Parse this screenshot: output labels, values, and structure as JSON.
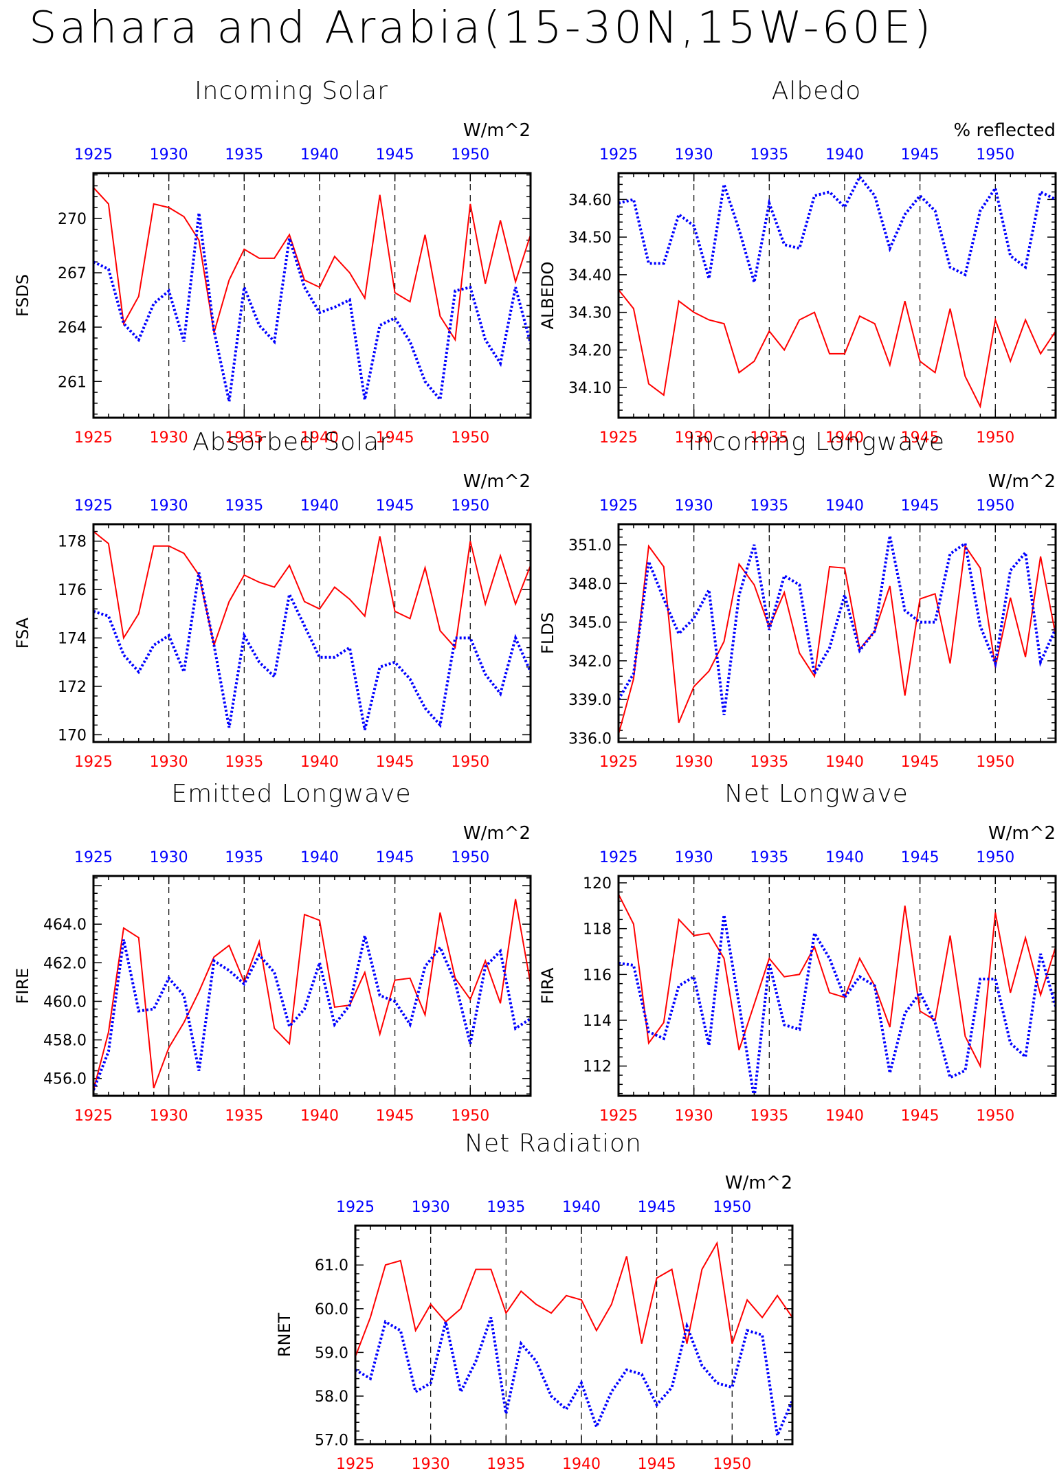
{
  "title": "Sahara and Arabia(15-30N,15W-60E)",
  "colors": {
    "series_a": "#ff0000",
    "series_b": "#0000ff",
    "axis": "#000000",
    "grid": "#000000"
  },
  "chart_data": [
    {
      "type": "line",
      "title": "Incoming Solar",
      "units": "W/m^2",
      "ylabel": "FSDS",
      "xlim": [
        1925,
        1954
      ],
      "ylim": [
        259.0,
        272.5
      ],
      "yticks": [
        "261",
        "264",
        "267",
        "270"
      ],
      "ytick_values": [
        261,
        264,
        267,
        270
      ],
      "xticks": [
        "1925",
        "1930",
        "1935",
        "1940",
        "1945",
        "1950"
      ],
      "x": [
        1925,
        1926,
        1927,
        1928,
        1929,
        1930,
        1931,
        1932,
        1933,
        1934,
        1935,
        1936,
        1937,
        1938,
        1939,
        1940,
        1941,
        1942,
        1943,
        1944,
        1945,
        1946,
        1947,
        1948,
        1949,
        1950,
        1951,
        1952,
        1953,
        1954
      ],
      "series": [
        {
          "style": "solid",
          "values": [
            271.7,
            270.8,
            264.2,
            265.7,
            270.8,
            270.6,
            270.1,
            268.8,
            263.7,
            266.6,
            268.3,
            267.8,
            267.8,
            269.1,
            266.6,
            266.2,
            267.9,
            267.0,
            265.6,
            271.3,
            265.9,
            265.4,
            269.1,
            264.6,
            263.3,
            270.8,
            266.4,
            269.9,
            266.5,
            269.1
          ]
        },
        {
          "style": "dotted",
          "values": [
            267.6,
            267.2,
            264.2,
            263.3,
            265.3,
            266.0,
            263.2,
            270.3,
            263.8,
            259.9,
            266.2,
            264.1,
            263.2,
            268.9,
            266.2,
            264.8,
            265.1,
            265.5,
            260.0,
            264.1,
            264.5,
            263.2,
            261.0,
            260.0,
            266.0,
            266.2,
            263.3,
            262.0,
            266.2,
            263.1
          ]
        }
      ]
    },
    {
      "type": "line",
      "title": "Albedo",
      "units": "% reflected",
      "ylabel": "ALBEDO",
      "xlim": [
        1925,
        1954
      ],
      "ylim": [
        34.02,
        34.67
      ],
      "yticks": [
        "34.10",
        "34.20",
        "34.30",
        "34.40",
        "34.50",
        "34.60"
      ],
      "ytick_values": [
        34.1,
        34.2,
        34.3,
        34.4,
        34.5,
        34.6
      ],
      "xticks": [
        "1925",
        "1930",
        "1935",
        "1940",
        "1945",
        "1950"
      ],
      "x": [
        1925,
        1926,
        1927,
        1928,
        1929,
        1930,
        1931,
        1932,
        1933,
        1934,
        1935,
        1936,
        1937,
        1938,
        1939,
        1940,
        1941,
        1942,
        1943,
        1944,
        1945,
        1946,
        1947,
        1948,
        1949,
        1950,
        1951,
        1952,
        1953,
        1954
      ],
      "series": [
        {
          "style": "solid",
          "values": [
            34.36,
            34.31,
            34.11,
            34.08,
            34.33,
            34.3,
            34.28,
            34.27,
            34.14,
            34.17,
            34.25,
            34.2,
            34.28,
            34.3,
            34.19,
            34.19,
            34.29,
            34.27,
            34.16,
            34.33,
            34.17,
            34.14,
            34.31,
            34.13,
            34.05,
            34.28,
            34.17,
            34.28,
            34.19,
            34.25
          ]
        },
        {
          "style": "dotted",
          "values": [
            34.59,
            34.6,
            34.43,
            34.43,
            34.56,
            34.53,
            34.39,
            34.64,
            34.52,
            34.38,
            34.59,
            34.48,
            34.47,
            34.61,
            34.62,
            34.58,
            34.66,
            34.61,
            34.47,
            34.56,
            34.61,
            34.57,
            34.42,
            34.4,
            34.57,
            34.63,
            34.45,
            34.42,
            34.62,
            34.6
          ]
        }
      ]
    },
    {
      "type": "line",
      "title": "Absorbed Solar",
      "units": "W/m^2",
      "ylabel": "FSA",
      "xlim": [
        1925,
        1954
      ],
      "ylim": [
        169.7,
        178.7
      ],
      "yticks": [
        "170",
        "172",
        "174",
        "176",
        "178"
      ],
      "ytick_values": [
        170,
        172,
        174,
        176,
        178
      ],
      "xticks": [
        "1925",
        "1930",
        "1935",
        "1940",
        "1945",
        "1950"
      ],
      "x": [
        1925,
        1926,
        1927,
        1928,
        1929,
        1930,
        1931,
        1932,
        1933,
        1934,
        1935,
        1936,
        1937,
        1938,
        1939,
        1940,
        1941,
        1942,
        1943,
        1944,
        1945,
        1946,
        1947,
        1948,
        1949,
        1950,
        1951,
        1952,
        1953,
        1954
      ],
      "series": [
        {
          "style": "solid",
          "values": [
            178.4,
            177.9,
            174.0,
            175.0,
            177.8,
            177.8,
            177.5,
            176.6,
            173.7,
            175.5,
            176.6,
            176.3,
            176.1,
            177.0,
            175.5,
            175.2,
            176.1,
            175.6,
            174.9,
            178.2,
            175.1,
            174.8,
            176.9,
            174.3,
            173.6,
            178.0,
            175.4,
            177.4,
            175.4,
            177.0
          ]
        },
        {
          "style": "dotted",
          "values": [
            175.1,
            174.9,
            173.3,
            172.6,
            173.7,
            174.1,
            172.6,
            176.7,
            173.7,
            170.3,
            174.1,
            173.0,
            172.4,
            175.8,
            174.5,
            173.2,
            173.2,
            173.6,
            170.2,
            172.8,
            173.0,
            172.3,
            171.1,
            170.4,
            174.0,
            174.0,
            172.5,
            171.7,
            174.0,
            172.6
          ]
        }
      ]
    },
    {
      "type": "line",
      "title": "Incoming Longwave",
      "units": "W/m^2",
      "ylabel": "FLDS",
      "xlim": [
        1925,
        1954
      ],
      "ylim": [
        335.7,
        352.6
      ],
      "yticks": [
        "336.0",
        "339.0",
        "342.0",
        "345.0",
        "348.0",
        "351.0"
      ],
      "ytick_values": [
        336,
        339,
        342,
        345,
        348,
        351
      ],
      "xticks": [
        "1925",
        "1930",
        "1935",
        "1940",
        "1945",
        "1950"
      ],
      "x": [
        1925,
        1926,
        1927,
        1928,
        1929,
        1930,
        1931,
        1932,
        1933,
        1934,
        1935,
        1936,
        1937,
        1938,
        1939,
        1940,
        1941,
        1942,
        1943,
        1944,
        1945,
        1946,
        1947,
        1948,
        1949,
        1950,
        1951,
        1952,
        1953,
        1954
      ],
      "series": [
        {
          "style": "solid",
          "values": [
            336.3,
            340.6,
            350.9,
            349.3,
            337.2,
            340.0,
            341.2,
            343.5,
            349.5,
            347.9,
            344.6,
            347.3,
            342.6,
            340.8,
            349.3,
            349.2,
            342.9,
            344.3,
            347.8,
            339.3,
            346.8,
            347.2,
            341.8,
            350.9,
            349.2,
            341.5,
            346.9,
            342.3,
            350.1,
            344.0
          ]
        },
        {
          "style": "dotted",
          "values": [
            339.0,
            341.0,
            349.7,
            346.8,
            344.1,
            345.3,
            347.5,
            337.8,
            347.1,
            351.0,
            344.4,
            348.6,
            347.9,
            341.0,
            343.0,
            347.1,
            342.8,
            344.3,
            351.7,
            345.9,
            345.0,
            345.0,
            350.3,
            351.1,
            344.7,
            341.8,
            349.0,
            350.4,
            341.9,
            344.5
          ]
        }
      ]
    },
    {
      "type": "line",
      "title": "Emitted Longwave",
      "units": "W/m^2",
      "ylabel": "FIRE",
      "xlim": [
        1925,
        1954
      ],
      "ylim": [
        455.1,
        466.5
      ],
      "yticks": [
        "456.0",
        "458.0",
        "460.0",
        "462.0",
        "464.0"
      ],
      "ytick_values": [
        456,
        458,
        460,
        462,
        464
      ],
      "xticks": [
        "1925",
        "1930",
        "1935",
        "1940",
        "1945",
        "1950"
      ],
      "x": [
        1925,
        1926,
        1927,
        1928,
        1929,
        1930,
        1931,
        1932,
        1933,
        1934,
        1935,
        1936,
        1937,
        1938,
        1939,
        1940,
        1941,
        1942,
        1943,
        1944,
        1945,
        1946,
        1947,
        1948,
        1949,
        1950,
        1951,
        1952,
        1953,
        1954
      ],
      "series": [
        {
          "style": "solid",
          "values": [
            455.4,
            458.4,
            463.8,
            463.3,
            455.5,
            457.6,
            458.9,
            460.5,
            462.3,
            462.9,
            461.0,
            463.1,
            458.6,
            457.8,
            464.5,
            464.2,
            459.7,
            459.8,
            461.5,
            458.3,
            461.1,
            461.2,
            459.3,
            464.6,
            461.2,
            460.1,
            462.1,
            459.9,
            465.3,
            460.9
          ]
        },
        {
          "style": "dotted",
          "values": [
            455.4,
            457.4,
            463.2,
            459.5,
            459.6,
            461.2,
            460.3,
            456.4,
            462.1,
            461.6,
            460.9,
            462.4,
            461.5,
            458.7,
            459.6,
            462.0,
            458.8,
            459.8,
            463.4,
            460.3,
            460.0,
            458.8,
            461.8,
            462.8,
            461.0,
            457.8,
            461.8,
            462.6,
            458.6,
            459.1
          ]
        }
      ]
    },
    {
      "type": "line",
      "title": "Net Longwave",
      "units": "W/m^2",
      "ylabel": "FIRA",
      "xlim": [
        1925,
        1954
      ],
      "ylim": [
        110.7,
        120.3
      ],
      "yticks": [
        "112",
        "114",
        "116",
        "118",
        "120"
      ],
      "ytick_values": [
        112,
        114,
        116,
        118,
        120
      ],
      "xticks": [
        "1925",
        "1930",
        "1935",
        "1940",
        "1945",
        "1950"
      ],
      "x": [
        1925,
        1926,
        1927,
        1928,
        1929,
        1930,
        1931,
        1932,
        1933,
        1934,
        1935,
        1936,
        1937,
        1938,
        1939,
        1940,
        1941,
        1942,
        1943,
        1944,
        1945,
        1946,
        1947,
        1948,
        1949,
        1950,
        1951,
        1952,
        1953,
        1954
      ],
      "series": [
        {
          "style": "solid",
          "values": [
            119.5,
            118.2,
            113.0,
            113.9,
            118.4,
            117.7,
            117.8,
            116.7,
            112.7,
            114.7,
            116.7,
            115.9,
            116.0,
            117.2,
            115.2,
            115.0,
            116.7,
            115.5,
            113.7,
            119.0,
            114.4,
            114.0,
            117.7,
            113.3,
            112.0,
            118.7,
            115.2,
            117.6,
            115.1,
            117.2
          ]
        },
        {
          "style": "dotted",
          "values": [
            116.5,
            116.4,
            113.5,
            113.2,
            115.5,
            115.9,
            112.9,
            118.6,
            114.7,
            110.6,
            116.5,
            113.8,
            113.6,
            117.8,
            116.7,
            115.0,
            115.9,
            115.5,
            111.7,
            114.3,
            115.2,
            113.9,
            111.5,
            111.8,
            115.8,
            115.8,
            113.0,
            112.4,
            116.9,
            114.6
          ]
        }
      ]
    },
    {
      "type": "line",
      "title": "Net Radiation",
      "units": "W/m^2",
      "ylabel": "RNET",
      "xlim": [
        1925,
        1954
      ],
      "ylim": [
        56.9,
        61.9
      ],
      "yticks": [
        "57.0",
        "58.0",
        "59.0",
        "60.0",
        "61.0"
      ],
      "ytick_values": [
        57,
        58,
        59,
        60,
        61
      ],
      "xticks": [
        "1925",
        "1930",
        "1935",
        "1940",
        "1945",
        "1950"
      ],
      "x": [
        1925,
        1926,
        1927,
        1928,
        1929,
        1930,
        1931,
        1932,
        1933,
        1934,
        1935,
        1936,
        1937,
        1938,
        1939,
        1940,
        1941,
        1942,
        1943,
        1944,
        1945,
        1946,
        1947,
        1948,
        1949,
        1950,
        1951,
        1952,
        1953,
        1954
      ],
      "series": [
        {
          "style": "solid",
          "values": [
            58.9,
            59.8,
            61.0,
            61.1,
            59.5,
            60.1,
            59.7,
            60.0,
            60.9,
            60.9,
            59.9,
            60.4,
            60.1,
            59.9,
            60.3,
            60.2,
            59.5,
            60.1,
            61.2,
            59.2,
            60.7,
            60.9,
            59.2,
            60.9,
            61.5,
            59.2,
            60.2,
            59.8,
            60.3,
            59.8
          ]
        },
        {
          "style": "dotted",
          "values": [
            58.6,
            58.4,
            59.7,
            59.5,
            58.1,
            58.3,
            59.7,
            58.1,
            58.8,
            59.8,
            57.6,
            59.2,
            58.8,
            58.0,
            57.7,
            58.3,
            57.3,
            58.1,
            58.6,
            58.5,
            57.8,
            58.2,
            59.6,
            58.7,
            58.3,
            58.2,
            59.5,
            59.4,
            57.1,
            57.9
          ]
        }
      ]
    }
  ]
}
